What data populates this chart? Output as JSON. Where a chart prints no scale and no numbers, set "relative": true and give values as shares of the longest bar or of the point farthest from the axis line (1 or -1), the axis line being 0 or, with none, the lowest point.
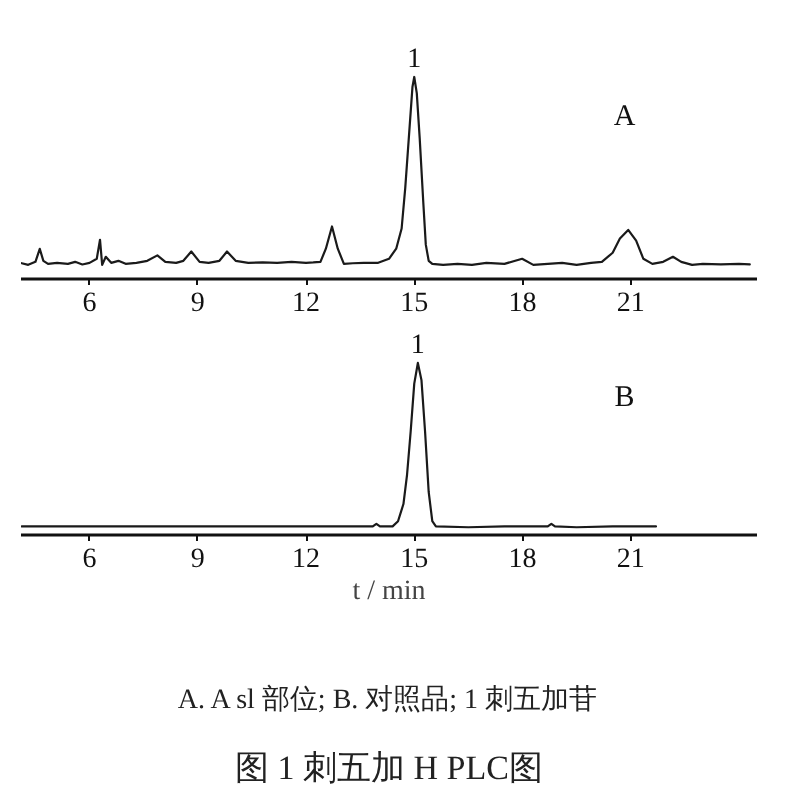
{
  "chart_data": [
    {
      "type": "line",
      "relative": true,
      "grid": false,
      "x": [
        4.12,
        4.3,
        4.5,
        4.62,
        4.72,
        4.85,
        5.1,
        5.4,
        5.6,
        5.8,
        6.0,
        6.2,
        6.29,
        6.35,
        6.45,
        6.6,
        6.8,
        7.0,
        7.3,
        7.6,
        7.88,
        8.1,
        8.4,
        8.6,
        8.82,
        9.05,
        9.3,
        9.6,
        9.81,
        10.05,
        10.4,
        10.8,
        11.2,
        11.6,
        12.0,
        12.2,
        12.4,
        12.55,
        12.72,
        12.88,
        13.05,
        13.3,
        13.6,
        13.8,
        14.0,
        14.3,
        14.5,
        14.65,
        14.75,
        14.85,
        14.95,
        15.0,
        15.07,
        15.15,
        15.25,
        15.32,
        15.4,
        15.5,
        15.8,
        16.2,
        16.6,
        17.0,
        17.5,
        17.99,
        18.3,
        18.7,
        19.1,
        19.5,
        19.9,
        20.2,
        20.5,
        20.7,
        20.93,
        21.15,
        21.35,
        21.6,
        21.9,
        22.17,
        22.4,
        22.7,
        23.0,
        23.5,
        24.0,
        24.3
      ],
      "series": [
        {
          "color": "#1a1a1a",
          "values": [
            0.078,
            0.07,
            0.085,
            0.149,
            0.09,
            0.075,
            0.08,
            0.075,
            0.085,
            0.072,
            0.08,
            0.1,
            0.194,
            0.07,
            0.11,
            0.08,
            0.09,
            0.075,
            0.08,
            0.09,
            0.117,
            0.085,
            0.08,
            0.09,
            0.136,
            0.085,
            0.08,
            0.09,
            0.136,
            0.09,
            0.08,
            0.082,
            0.08,
            0.085,
            0.08,
            0.082,
            0.085,
            0.15,
            0.26,
            0.15,
            0.075,
            0.078,
            0.08,
            0.08,
            0.08,
            0.1,
            0.15,
            0.25,
            0.45,
            0.7,
            0.95,
            1.0,
            0.92,
            0.7,
            0.38,
            0.17,
            0.09,
            0.075,
            0.07,
            0.075,
            0.07,
            0.08,
            0.075,
            0.1,
            0.07,
            0.075,
            0.08,
            0.07,
            0.08,
            0.085,
            0.13,
            0.2,
            0.243,
            0.19,
            0.1,
            0.075,
            0.085,
            0.11,
            0.085,
            0.07,
            0.075,
            0.072,
            0.075,
            0.072
          ]
        }
      ],
      "xlim": [
        4.1,
        24.5
      ],
      "xticks": [
        6,
        9,
        12,
        15,
        18,
        21
      ],
      "annotations": [
        {
          "text": "1",
          "x": 15.0,
          "y": 1.0
        },
        "A"
      ]
    },
    {
      "type": "line",
      "relative": true,
      "grid": false,
      "x": [
        4.12,
        6.0,
        9.0,
        12.0,
        13.85,
        13.95,
        14.05,
        14.4,
        14.55,
        14.7,
        14.8,
        14.9,
        15.0,
        15.1,
        15.2,
        15.3,
        15.4,
        15.5,
        15.6,
        16.5,
        17.5,
        18.7,
        18.8,
        18.9,
        19.5,
        20.5,
        21.7
      ],
      "series": [
        {
          "color": "#1a1a1a",
          "values": [
            0.05,
            0.05,
            0.05,
            0.05,
            0.05,
            0.065,
            0.05,
            0.05,
            0.08,
            0.18,
            0.35,
            0.6,
            0.88,
            1.0,
            0.9,
            0.6,
            0.25,
            0.08,
            0.05,
            0.045,
            0.05,
            0.05,
            0.065,
            0.05,
            0.045,
            0.05,
            0.05
          ]
        }
      ],
      "xlim": [
        4.1,
        24.5
      ],
      "xticks": [
        6,
        9,
        12,
        15,
        18,
        21
      ],
      "xlabel": "t / min",
      "title": "图 1 刺五加 H PLC图",
      "annotations": [
        {
          "text": "1",
          "x": 15.1,
          "y": 1.0
        },
        "B",
        "A. A sl 部位; B. 对照品; 1 刺五加苷"
      ]
    }
  ]
}
